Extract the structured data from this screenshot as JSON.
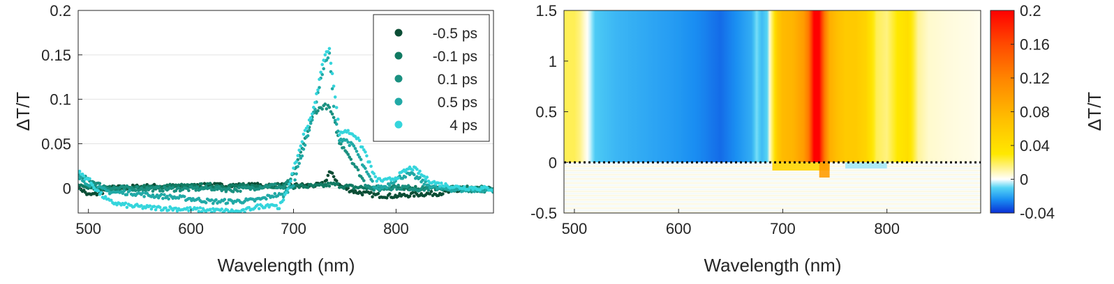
{
  "chart_data": [
    {
      "type": "scatter",
      "xlabel": "Wavelength (nm)",
      "ylabel": "ΔT/T",
      "xlim": [
        490,
        895
      ],
      "ylim": [
        -0.028,
        0.2
      ],
      "xticks": [
        "500",
        "600",
        "700",
        "800"
      ],
      "yticks": [
        "0",
        "0.05",
        "0.1",
        "0.15",
        "0.2"
      ],
      "grid": "horizontal",
      "legend_position": "top-right",
      "series": [
        {
          "name": "-0.5 ps",
          "color": "#0b4d35",
          "x": [
            490,
            500,
            510,
            520,
            540,
            560,
            580,
            600,
            620,
            640,
            660,
            680,
            700,
            715,
            725,
            730,
            735,
            740,
            745,
            750,
            760,
            780,
            800,
            820,
            840,
            860,
            880,
            895
          ],
          "y": [
            0.002,
            -0.008,
            -0.006,
            0,
            0.001,
            0.002,
            0.002,
            0.002,
            0.003,
            0.003,
            0.003,
            0.003,
            0.003,
            0.003,
            0.003,
            0.005,
            0.018,
            0.012,
            0.003,
            0,
            -0.004,
            -0.008,
            -0.009,
            -0.007,
            -0.006,
            -0.003,
            -0.002,
            -0.001
          ]
        },
        {
          "name": "-0.1 ps",
          "color": "#117a62",
          "x": [
            490,
            500,
            510,
            520,
            540,
            560,
            580,
            600,
            620,
            640,
            660,
            680,
            700,
            715,
            725,
            730,
            735,
            740,
            745,
            750,
            760,
            780,
            800,
            820,
            840,
            860,
            880,
            895
          ],
          "y": [
            0.002,
            0,
            0,
            0,
            0,
            0.001,
            0.002,
            0.002,
            0.003,
            0.002,
            0.002,
            0.003,
            0.002,
            0.002,
            0.002,
            0.003,
            0.004,
            0.004,
            0.003,
            0.002,
            0.001,
            0,
            0.001,
            0,
            0,
            0,
            0,
            -0.001
          ]
        },
        {
          "name": "0.1 ps",
          "color": "#1a9080",
          "x": [
            490,
            500,
            510,
            520,
            530,
            540,
            560,
            580,
            600,
            620,
            640,
            660,
            670,
            680,
            690,
            700,
            710,
            720,
            730,
            735,
            740,
            745,
            750,
            760,
            770,
            780,
            790,
            800,
            810,
            820,
            840,
            860,
            880,
            895
          ],
          "y": [
            0.014,
            0.01,
            0.004,
            0,
            0,
            0,
            -0.001,
            -0.001,
            -0.001,
            0,
            -0.002,
            0,
            0.002,
            0.003,
            0,
            0.015,
            0.05,
            0.085,
            0.093,
            0.09,
            0.075,
            0.05,
            0.045,
            0.025,
            0.005,
            -0.002,
            0,
            0.001,
            0.001,
            -0.001,
            0,
            -0.001,
            -0.002,
            -0.002
          ]
        },
        {
          "name": "0.5 ps",
          "color": "#21a9a6",
          "x": [
            490,
            500,
            510,
            520,
            530,
            540,
            560,
            580,
            600,
            620,
            640,
            660,
            670,
            680,
            690,
            700,
            710,
            720,
            730,
            735,
            740,
            745,
            750,
            760,
            770,
            780,
            790,
            800,
            810,
            815,
            820,
            830,
            840,
            860,
            880,
            895
          ],
          "y": [
            0.012,
            0.005,
            0,
            -0.004,
            -0.005,
            -0.005,
            -0.008,
            -0.01,
            -0.012,
            -0.015,
            -0.015,
            -0.014,
            -0.012,
            -0.008,
            -0.008,
            0.005,
            0.045,
            0.085,
            0.14,
            0.15,
            0.08,
            0.055,
            0.055,
            0.045,
            0.02,
            0,
            0.002,
            0.01,
            0.015,
            0.015,
            0.012,
            0.004,
            0,
            -0.002,
            -0.002,
            -0.002
          ]
        },
        {
          "name": "4 ps",
          "color": "#35d5dc",
          "x": [
            490,
            500,
            510,
            520,
            530,
            540,
            560,
            580,
            600,
            620,
            640,
            650,
            660,
            670,
            680,
            685,
            690,
            700,
            710,
            720,
            730,
            735,
            740,
            745,
            750,
            760,
            770,
            780,
            790,
            800,
            810,
            815,
            820,
            830,
            840,
            860,
            880,
            895
          ],
          "y": [
            0.018,
            0.01,
            -0.005,
            -0.015,
            -0.018,
            -0.02,
            -0.022,
            -0.023,
            -0.024,
            -0.025,
            -0.026,
            -0.027,
            -0.022,
            -0.02,
            -0.018,
            -0.022,
            -0.015,
            0.02,
            0.06,
            0.09,
            0.15,
            0.155,
            0.11,
            0.06,
            0.065,
            0.06,
            0.04,
            0.01,
            0.008,
            0.012,
            0.02,
            0.023,
            0.02,
            0.01,
            0.005,
            0.001,
            0,
            -0.001
          ]
        }
      ]
    },
    {
      "type": "heatmap",
      "xlabel": "Wavelength (nm)",
      "ylabel": "",
      "xlim": [
        490,
        890
      ],
      "ylim": [
        -0.5,
        1.5
      ],
      "xticks": [
        "500",
        "600",
        "700",
        "800"
      ],
      "yticks": [
        "-0.5",
        "0",
        "0.5",
        "1",
        "1.5"
      ],
      "zero_line": 0,
      "colorbar": {
        "label": "ΔT/T",
        "range": [
          -0.04,
          0.2
        ],
        "ticks": [
          "-0.04",
          "0",
          "0.04",
          "0.08",
          "0.12",
          "0.16",
          "0.2"
        ],
        "stops": [
          {
            "v": -0.04,
            "c": "#0a2fd6"
          },
          {
            "v": -0.024,
            "c": "#1a8ff2"
          },
          {
            "v": -0.01,
            "c": "#55d4f5"
          },
          {
            "v": 0,
            "c": "#ffffff"
          },
          {
            "v": 0.012,
            "c": "#fff49a"
          },
          {
            "v": 0.03,
            "c": "#ffe800"
          },
          {
            "v": 0.07,
            "c": "#ffc000"
          },
          {
            "v": 0.12,
            "c": "#ff8400"
          },
          {
            "v": 0.16,
            "c": "#ff4a00"
          },
          {
            "v": 0.2,
            "c": "#ff0000"
          }
        ]
      },
      "spectral_profile": {
        "wavelength": [
          490,
          500,
          505,
          510,
          515,
          520,
          540,
          560,
          580,
          600,
          620,
          640,
          650,
          660,
          670,
          675,
          680,
          685,
          690,
          695,
          700,
          710,
          720,
          725,
          730,
          735,
          740,
          745,
          750,
          760,
          770,
          780,
          790,
          800,
          810,
          820,
          830,
          840,
          860,
          880,
          890
        ],
        "dT": [
          0.02,
          0.02,
          0.015,
          0.005,
          -0.003,
          -0.012,
          -0.016,
          -0.018,
          -0.02,
          -0.022,
          -0.025,
          -0.03,
          -0.026,
          -0.022,
          -0.018,
          -0.008,
          -0.015,
          -0.01,
          0.02,
          0.06,
          0.075,
          0.08,
          0.1,
          0.13,
          0.2,
          0.2,
          0.13,
          0.085,
          0.075,
          0.06,
          0.06,
          0.05,
          0.02,
          0.015,
          0.03,
          0.04,
          0.012,
          0.006,
          0.004,
          0.003,
          0.002
        ]
      }
    }
  ]
}
